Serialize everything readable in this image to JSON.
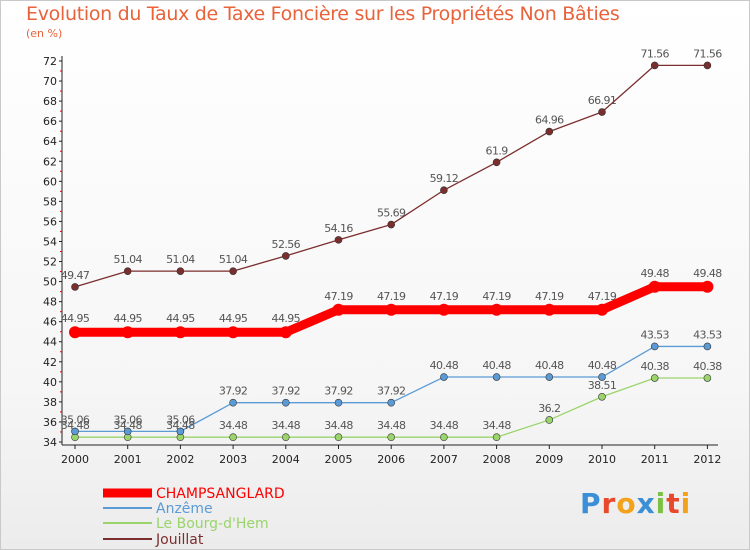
{
  "title": "Evolution du Taux de Taxe Foncière sur les Propriétés Non Bâties",
  "subtitle": "(en %)",
  "logo": {
    "letters": [
      "P",
      "r",
      "o",
      "x",
      "i",
      "t",
      "i"
    ],
    "colors": [
      "#3a8fd6",
      "#e8482c",
      "#f2a21b",
      "#3a8fd6",
      "#7cc242",
      "#e8482c",
      "#f2a21b"
    ]
  },
  "chart_data": {
    "type": "line",
    "title": "Evolution du Taux de Taxe Foncière sur les Propriétés Non Bâties",
    "subtitle": "(en %)",
    "xlabel": "",
    "ylabel": "(en %)",
    "x": [
      "2000",
      "2001",
      "2002",
      "2003",
      "2004",
      "2005",
      "2006",
      "2007",
      "2008",
      "2009",
      "2010",
      "2011",
      "2012"
    ],
    "ylim": [
      34,
      72
    ],
    "yticks": [
      34,
      36,
      38,
      40,
      42,
      44,
      46,
      48,
      50,
      52,
      54,
      56,
      58,
      60,
      62,
      64,
      66,
      68,
      70,
      72
    ],
    "grid": false,
    "legend": "bottom-left",
    "series": [
      {
        "name": "CHAMPSANGLARD",
        "color": "#ff0000",
        "values": [
          44.95,
          44.95,
          44.95,
          44.95,
          44.95,
          47.19,
          47.19,
          47.19,
          47.19,
          47.19,
          47.19,
          49.48,
          49.48
        ],
        "labels": [
          "44.95",
          "44.95",
          "44.95",
          "44.95",
          "44.95",
          "47.19",
          "47.19",
          "47.19",
          "47.19",
          "47.19",
          "47.19",
          "49.48",
          "49.48"
        ]
      },
      {
        "name": "Anzême",
        "color": "#5b9bd5",
        "values": [
          35.06,
          35.06,
          35.06,
          37.92,
          37.92,
          37.92,
          37.92,
          40.48,
          40.48,
          40.48,
          40.48,
          43.53,
          43.53
        ],
        "labels": [
          "35.06",
          "35.06",
          "35.06",
          "37.92",
          "37.92",
          "37.92",
          "37.92",
          "40.48",
          "40.48",
          "40.48",
          "40.48",
          "43.53",
          "43.53"
        ]
      },
      {
        "name": "Le Bourg-d'Hem",
        "color": "#9ad46b",
        "values": [
          34.48,
          34.48,
          34.48,
          34.48,
          34.48,
          34.48,
          34.48,
          34.48,
          34.48,
          36.2,
          38.51,
          40.38,
          40.38
        ],
        "labels": [
          "34.48",
          "34.48",
          "34.48",
          "34.48",
          "34.48",
          "34.48",
          "34.48",
          "34.48",
          "34.48",
          "36.2",
          "38.51",
          "40.38",
          "40.38"
        ]
      },
      {
        "name": "Jouillat",
        "color": "#7b2e2e",
        "values": [
          49.47,
          51.04,
          51.04,
          51.04,
          52.56,
          54.16,
          55.69,
          59.12,
          61.9,
          64.96,
          66.91,
          71.56,
          71.56
        ],
        "labels": [
          "49.47",
          "51.04",
          "51.04",
          "51.04",
          "52.56",
          "54.16",
          "55.69",
          "59.12",
          "61.9",
          "64.96",
          "66.91",
          "71.56",
          "71.56"
        ]
      }
    ]
  }
}
